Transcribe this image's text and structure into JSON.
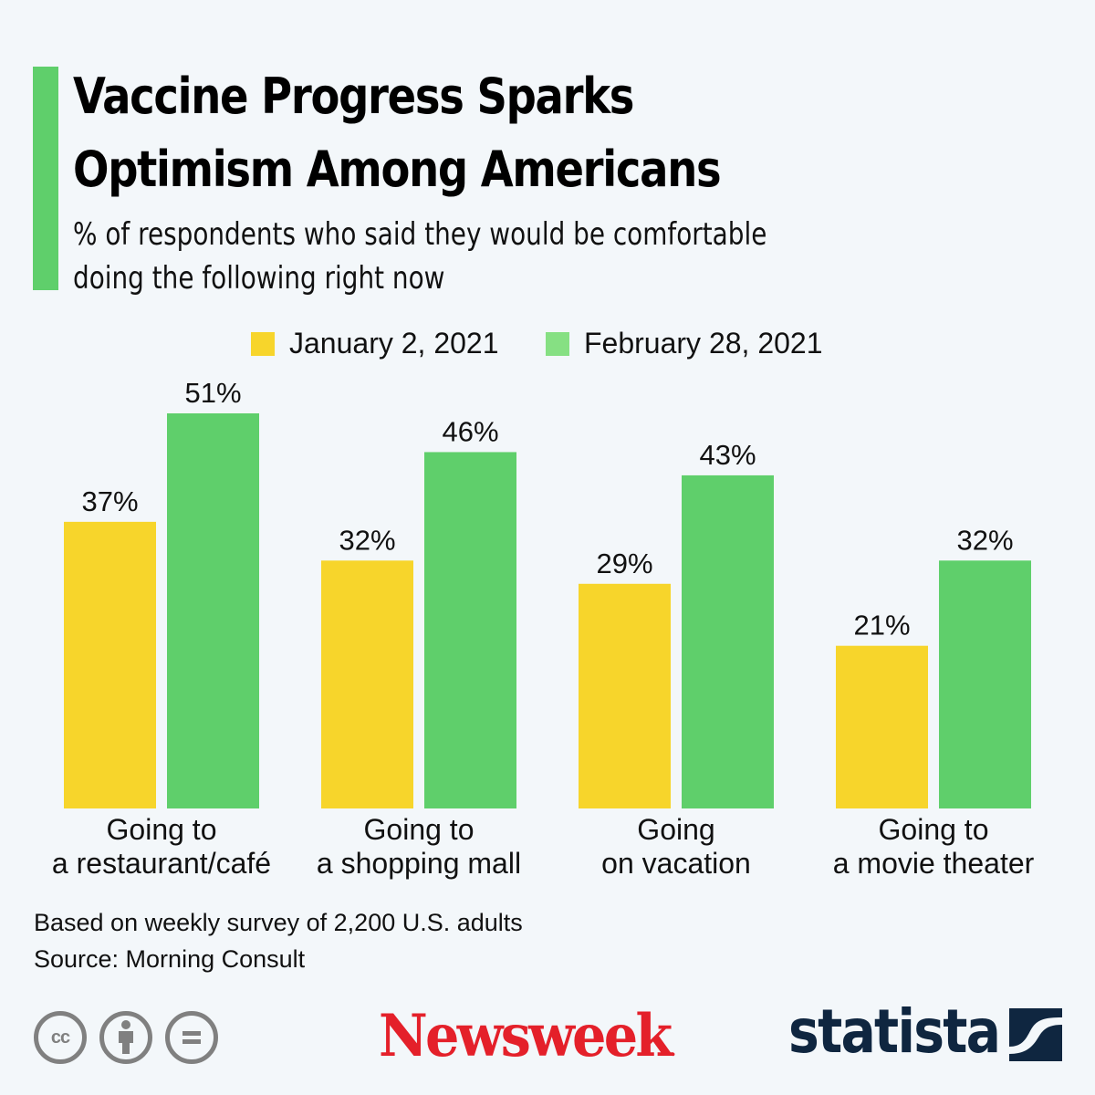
{
  "header": {
    "title_line1": "Vaccine Progress Sparks",
    "title_line2": "Optimism Among Americans",
    "subtitle_line1": "% of respondents who said they would be comfortable",
    "subtitle_line2": "doing the following right now"
  },
  "colors": {
    "accent": "#5fcf6b",
    "jan": "#f7d52b",
    "feb": "#5fcf6b",
    "legend_feb": "#86e083",
    "newsweek_red": "#e4202a",
    "statista_navy": "#0f2640"
  },
  "chart_data": {
    "type": "bar",
    "title": "Vaccine Progress Sparks Optimism Among Americans",
    "subtitle": "% of respondents who said they would be comfortable doing the following right now",
    "categories": [
      [
        "Going to",
        "a restaurant/café"
      ],
      [
        "Going to",
        "a shopping mall"
      ],
      [
        "Going",
        "on vacation"
      ],
      [
        "Going to",
        "a movie theater"
      ]
    ],
    "series": [
      {
        "name": "January 2, 2021",
        "values": [
          37,
          32,
          29,
          21
        ],
        "labels": [
          "37%",
          "32%",
          "29%",
          "21%"
        ]
      },
      {
        "name": "February 28, 2021",
        "values": [
          51,
          46,
          43,
          32
        ],
        "labels": [
          "51%",
          "46%",
          "43%",
          "32%"
        ]
      }
    ],
    "unit": "%",
    "xlabel": "",
    "ylabel": "",
    "ylim": [
      0,
      51
    ],
    "grid": false,
    "legend_position": "top-center"
  },
  "footer": {
    "note": "Based on weekly survey of 2,200 U.S. adults",
    "source": "Source: Morning Consult",
    "license_icons": [
      "cc-icon",
      "attribution-icon",
      "no-derivatives-icon"
    ],
    "cc_text": "cc",
    "nd_text": "=",
    "newsweek_logo": "Newsweek",
    "newsweek_dot": ".",
    "statista_logo": "statista"
  }
}
